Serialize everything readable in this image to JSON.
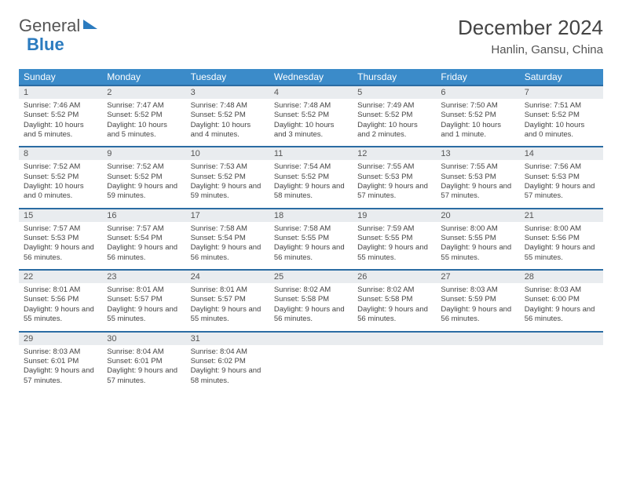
{
  "brand": {
    "part1": "General",
    "part2": "Blue"
  },
  "title": "December 2024",
  "location": "Hanlin, Gansu, China",
  "colors": {
    "header_bg": "#3b8bc9",
    "header_text": "#ffffff",
    "row_border": "#2b6ca3",
    "daynum_bg": "#e9ecef",
    "text": "#444444",
    "brand_gray": "#555555",
    "brand_blue": "#2b7bbf"
  },
  "day_names": [
    "Sunday",
    "Monday",
    "Tuesday",
    "Wednesday",
    "Thursday",
    "Friday",
    "Saturday"
  ],
  "weeks": [
    [
      {
        "n": "1",
        "sr": "7:46 AM",
        "ss": "5:52 PM",
        "dl": "10 hours and 5 minutes."
      },
      {
        "n": "2",
        "sr": "7:47 AM",
        "ss": "5:52 PM",
        "dl": "10 hours and 5 minutes."
      },
      {
        "n": "3",
        "sr": "7:48 AM",
        "ss": "5:52 PM",
        "dl": "10 hours and 4 minutes."
      },
      {
        "n": "4",
        "sr": "7:48 AM",
        "ss": "5:52 PM",
        "dl": "10 hours and 3 minutes."
      },
      {
        "n": "5",
        "sr": "7:49 AM",
        "ss": "5:52 PM",
        "dl": "10 hours and 2 minutes."
      },
      {
        "n": "6",
        "sr": "7:50 AM",
        "ss": "5:52 PM",
        "dl": "10 hours and 1 minute."
      },
      {
        "n": "7",
        "sr": "7:51 AM",
        "ss": "5:52 PM",
        "dl": "10 hours and 0 minutes."
      }
    ],
    [
      {
        "n": "8",
        "sr": "7:52 AM",
        "ss": "5:52 PM",
        "dl": "10 hours and 0 minutes."
      },
      {
        "n": "9",
        "sr": "7:52 AM",
        "ss": "5:52 PM",
        "dl": "9 hours and 59 minutes."
      },
      {
        "n": "10",
        "sr": "7:53 AM",
        "ss": "5:52 PM",
        "dl": "9 hours and 59 minutes."
      },
      {
        "n": "11",
        "sr": "7:54 AM",
        "ss": "5:52 PM",
        "dl": "9 hours and 58 minutes."
      },
      {
        "n": "12",
        "sr": "7:55 AM",
        "ss": "5:53 PM",
        "dl": "9 hours and 57 minutes."
      },
      {
        "n": "13",
        "sr": "7:55 AM",
        "ss": "5:53 PM",
        "dl": "9 hours and 57 minutes."
      },
      {
        "n": "14",
        "sr": "7:56 AM",
        "ss": "5:53 PM",
        "dl": "9 hours and 57 minutes."
      }
    ],
    [
      {
        "n": "15",
        "sr": "7:57 AM",
        "ss": "5:53 PM",
        "dl": "9 hours and 56 minutes."
      },
      {
        "n": "16",
        "sr": "7:57 AM",
        "ss": "5:54 PM",
        "dl": "9 hours and 56 minutes."
      },
      {
        "n": "17",
        "sr": "7:58 AM",
        "ss": "5:54 PM",
        "dl": "9 hours and 56 minutes."
      },
      {
        "n": "18",
        "sr": "7:58 AM",
        "ss": "5:55 PM",
        "dl": "9 hours and 56 minutes."
      },
      {
        "n": "19",
        "sr": "7:59 AM",
        "ss": "5:55 PM",
        "dl": "9 hours and 55 minutes."
      },
      {
        "n": "20",
        "sr": "8:00 AM",
        "ss": "5:55 PM",
        "dl": "9 hours and 55 minutes."
      },
      {
        "n": "21",
        "sr": "8:00 AM",
        "ss": "5:56 PM",
        "dl": "9 hours and 55 minutes."
      }
    ],
    [
      {
        "n": "22",
        "sr": "8:01 AM",
        "ss": "5:56 PM",
        "dl": "9 hours and 55 minutes."
      },
      {
        "n": "23",
        "sr": "8:01 AM",
        "ss": "5:57 PM",
        "dl": "9 hours and 55 minutes."
      },
      {
        "n": "24",
        "sr": "8:01 AM",
        "ss": "5:57 PM",
        "dl": "9 hours and 55 minutes."
      },
      {
        "n": "25",
        "sr": "8:02 AM",
        "ss": "5:58 PM",
        "dl": "9 hours and 56 minutes."
      },
      {
        "n": "26",
        "sr": "8:02 AM",
        "ss": "5:58 PM",
        "dl": "9 hours and 56 minutes."
      },
      {
        "n": "27",
        "sr": "8:03 AM",
        "ss": "5:59 PM",
        "dl": "9 hours and 56 minutes."
      },
      {
        "n": "28",
        "sr": "8:03 AM",
        "ss": "6:00 PM",
        "dl": "9 hours and 56 minutes."
      }
    ],
    [
      {
        "n": "29",
        "sr": "8:03 AM",
        "ss": "6:01 PM",
        "dl": "9 hours and 57 minutes."
      },
      {
        "n": "30",
        "sr": "8:04 AM",
        "ss": "6:01 PM",
        "dl": "9 hours and 57 minutes."
      },
      {
        "n": "31",
        "sr": "8:04 AM",
        "ss": "6:02 PM",
        "dl": "9 hours and 58 minutes."
      },
      {
        "empty": true
      },
      {
        "empty": true
      },
      {
        "empty": true
      },
      {
        "empty": true
      }
    ]
  ],
  "labels": {
    "sunrise": "Sunrise:",
    "sunset": "Sunset:",
    "daylight": "Daylight:"
  }
}
